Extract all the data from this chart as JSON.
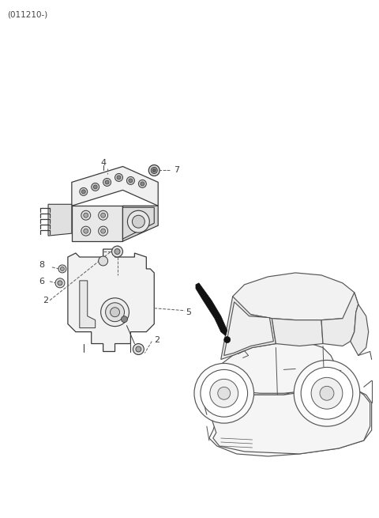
{
  "watermark": "(011210-)",
  "bg_color": "#ffffff",
  "fig_width": 4.8,
  "fig_height": 6.55,
  "dpi": 100,
  "line_color": "#3a3a3a",
  "label_color": "#222222",
  "dash_color": "#666666"
}
